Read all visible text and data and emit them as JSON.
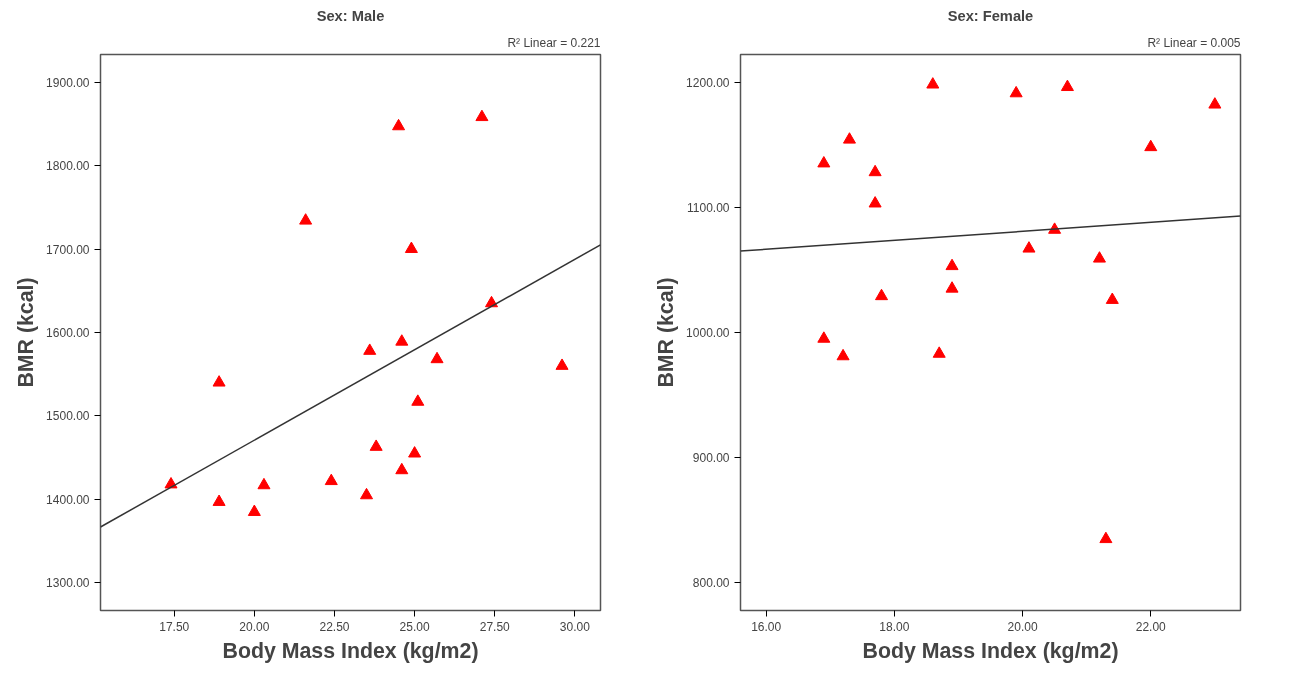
{
  "chart_data": [
    {
      "type": "scatter",
      "title": "Sex: Male",
      "xlabel": "Body Mass Index (kg/m2)",
      "ylabel": "BMR (kcal)",
      "annotations": [
        "R² Linear = 0.221"
      ],
      "grid": false,
      "marker": "triangle",
      "xlim": [
        15.2,
        30.8
      ],
      "ylim": [
        1267,
        1933
      ],
      "xticks": [
        {
          "value": 17.5,
          "label": "17.50"
        },
        {
          "value": 20,
          "label": "20.00"
        },
        {
          "value": 22.5,
          "label": "22.50"
        },
        {
          "value": 25,
          "label": "25.00"
        },
        {
          "value": 27.5,
          "label": "27.50"
        },
        {
          "value": 30,
          "label": "30.00"
        }
      ],
      "yticks": [
        {
          "value": 1300,
          "label": "1300.00"
        },
        {
          "value": 1400,
          "label": "1400.00"
        },
        {
          "value": 1500,
          "label": "1500.00"
        },
        {
          "value": 1600,
          "label": "1600.00"
        },
        {
          "value": 1700,
          "label": "1700.00"
        },
        {
          "value": 1800,
          "label": "1800.00"
        },
        {
          "value": 1900,
          "label": "1900.00"
        }
      ],
      "series": [
        {
          "color": "#ff0000",
          "x": [
            17.4,
            18.9,
            18.9,
            20.0,
            20.3,
            22.4,
            23.5,
            23.6,
            23.8,
            24.6,
            24.6,
            25.0,
            25.1,
            25.7,
            29.6,
            24.5,
            27.1,
            21.6,
            24.9,
            27.4
          ],
          "values": [
            1418,
            1540,
            1397,
            1385,
            1417,
            1422,
            1405,
            1578,
            1463,
            1589,
            1435,
            1455,
            1517,
            1568,
            1560,
            1847,
            1858,
            1734,
            1700,
            1635
          ]
        },
        {
          "type": "line",
          "color": "#333333",
          "marker": "none",
          "x": [
            15.2,
            30.8
          ],
          "values": [
            1367,
            1705
          ]
        }
      ]
    },
    {
      "type": "scatter",
      "title": "Sex: Female",
      "xlabel": "Body Mass Index (kg/m2)",
      "ylabel": "BMR (kcal)",
      "annotations": [
        "R² Linear = 0.005"
      ],
      "grid": false,
      "marker": "triangle",
      "xlim": [
        15.6,
        23.4
      ],
      "ylim": [
        778,
        1222
      ],
      "xticks": [
        {
          "value": 16,
          "label": "16.00"
        },
        {
          "value": 18,
          "label": "18.00"
        },
        {
          "value": 20,
          "label": "20.00"
        },
        {
          "value": 22,
          "label": "22.00"
        }
      ],
      "yticks": [
        {
          "value": 800,
          "label": "800.00"
        },
        {
          "value": 900,
          "label": "900.00"
        },
        {
          "value": 1000,
          "label": "1000.00"
        },
        {
          "value": 1100,
          "label": "1100.00"
        },
        {
          "value": 1200,
          "label": "1200.00"
        }
      ],
      "series": [
        {
          "color": "#ff0000",
          "x": [
            18.6,
            19.9,
            20.7,
            23.0,
            17.3,
            16.9,
            17.7,
            17.7,
            22.0,
            20.5,
            20.1,
            21.2,
            18.9,
            18.9,
            17.8,
            21.4,
            16.9,
            17.2,
            18.7,
            21.3
          ],
          "values": [
            1198,
            1191,
            1196,
            1182,
            1154,
            1135,
            1128,
            1103,
            1148,
            1082,
            1067,
            1059,
            1053,
            1035,
            1029,
            1026,
            995,
            981,
            983,
            835
          ]
        },
        {
          "type": "line",
          "color": "#333333",
          "marker": "none",
          "x": [
            15.6,
            23.4
          ],
          "values": [
            1065,
            1093
          ]
        }
      ]
    }
  ]
}
